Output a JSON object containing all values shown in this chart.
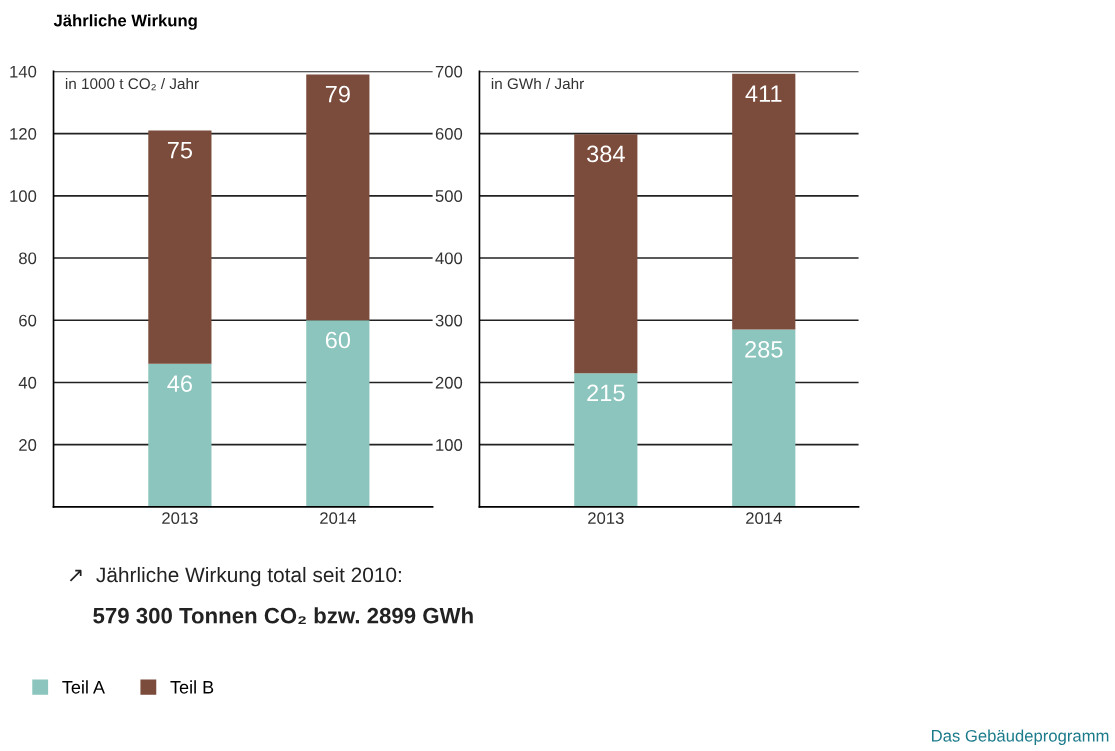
{
  "chart_data": [
    {
      "type": "bar",
      "stacked": true,
      "title": "Jährliche Wirkung",
      "ylabel": "in 1000 t CO₂ / Jahr",
      "categories": [
        "2013",
        "2014"
      ],
      "series": [
        {
          "name": "Teil A",
          "color": "#8cc5bd",
          "values": [
            46,
            60
          ]
        },
        {
          "name": "Teil B",
          "color": "#7b4b3b",
          "values": [
            75,
            79
          ]
        }
      ],
      "ylim": [
        0,
        140
      ],
      "yticks": [
        20,
        40,
        60,
        80,
        100,
        120,
        140
      ],
      "grid": "y",
      "data_labels": true,
      "legend": "bottom left",
      "annotations": [
        "↗  Jährliche Wirkung total seit 2010:",
        "579 300 Tonnen CO₂ bzw. 2899 GWh"
      ]
    },
    {
      "type": "bar",
      "stacked": true,
      "ylabel": "in GWh / Jahr",
      "categories": [
        "2013",
        "2014"
      ],
      "series": [
        {
          "color": "#8cc5bd",
          "values": [
            215,
            285
          ]
        },
        {
          "color": "#7b4b3b",
          "values": [
            384,
            411
          ]
        }
      ],
      "ylim": [
        0,
        700
      ],
      "yticks": [
        100,
        200,
        300,
        400,
        500,
        600,
        700
      ],
      "grid": "y",
      "data_labels": true,
      "annotations": [
        "Das Gebäudeprogramm"
      ]
    }
  ]
}
